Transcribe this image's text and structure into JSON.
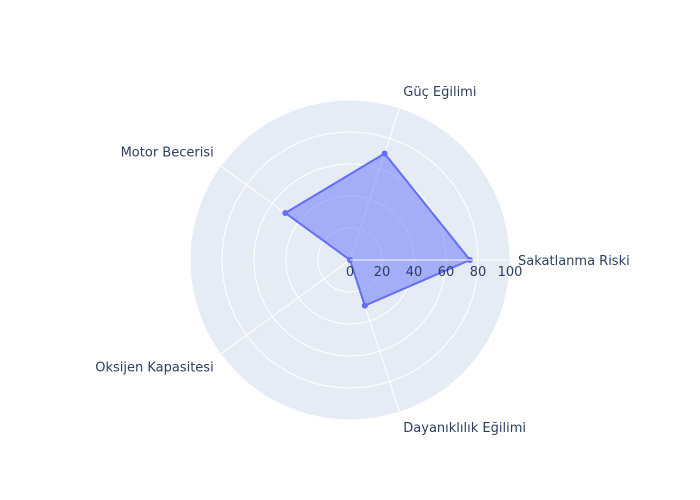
{
  "chart_data": {
    "type": "radar",
    "categories": [
      "Sakatlanma Riski",
      "Güç Eğilimi",
      "Motor Becerisi",
      "Oksijen Kapasitesi",
      "Dayanıklılık Eğilimi"
    ],
    "series": [
      {
        "values": [
          75,
          70,
          50,
          0,
          30
        ]
      }
    ],
    "radial_range": [
      0,
      100
    ],
    "radial_ticks": [
      "0",
      "20",
      "40",
      "60",
      "80",
      "100"
    ],
    "grid": true,
    "legend": "none",
    "colors": {
      "polar_bg": "#E5ECF6",
      "grid": "#ffffff",
      "series_line": "#636EFA",
      "series_fill": "rgba(99,110,250,0.5)",
      "text": "#2a3f5f"
    }
  }
}
